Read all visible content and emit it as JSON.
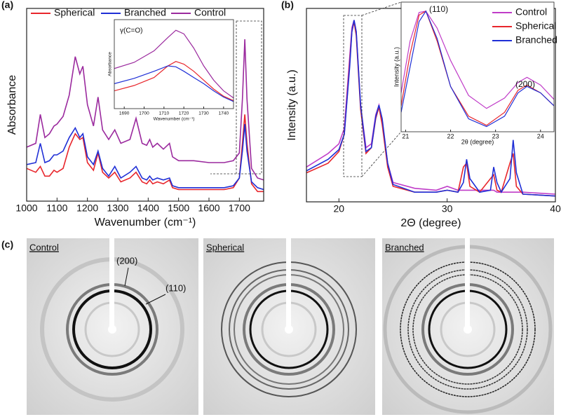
{
  "chart_data": [
    {
      "type": "line",
      "panel_label": "(a)",
      "x_label": "Wavenumber (cm⁻¹)",
      "y_label": "Absorbance",
      "x": [
        1000,
        1030,
        1045,
        1060,
        1075,
        1090,
        1100,
        1120,
        1140,
        1160,
        1175,
        1185,
        1200,
        1220,
        1235,
        1250,
        1270,
        1290,
        1310,
        1340,
        1360,
        1380,
        1395,
        1405,
        1415,
        1430,
        1450,
        1470,
        1480,
        1500,
        1550,
        1600,
        1650,
        1680,
        1700,
        1710,
        1718,
        1725,
        1740,
        1760,
        1780
      ],
      "series": [
        {
          "name": "Spherical",
          "color": "#e8262c",
          "values": [
            0.17,
            0.15,
            0.18,
            0.13,
            0.13,
            0.16,
            0.15,
            0.17,
            0.28,
            0.35,
            0.32,
            0.33,
            0.2,
            0.16,
            0.25,
            0.15,
            0.12,
            0.15,
            0.1,
            0.12,
            0.15,
            0.1,
            0.09,
            0.11,
            0.09,
            0.1,
            0.09,
            0.11,
            0.07,
            0.06,
            0.06,
            0.06,
            0.06,
            0.07,
            0.12,
            0.3,
            0.45,
            0.3,
            0.09,
            0.05,
            0.05
          ]
        },
        {
          "name": "Branched",
          "color": "#1f2fd6",
          "values": [
            0.19,
            0.2,
            0.3,
            0.2,
            0.21,
            0.24,
            0.24,
            0.26,
            0.33,
            0.38,
            0.33,
            0.35,
            0.23,
            0.19,
            0.26,
            0.17,
            0.13,
            0.18,
            0.12,
            0.15,
            0.18,
            0.12,
            0.11,
            0.13,
            0.11,
            0.12,
            0.11,
            0.12,
            0.08,
            0.07,
            0.07,
            0.07,
            0.07,
            0.08,
            0.12,
            0.26,
            0.4,
            0.26,
            0.1,
            0.07,
            0.06
          ]
        },
        {
          "name": "Control",
          "color": "#9b2a9e",
          "values": [
            0.28,
            0.3,
            0.45,
            0.33,
            0.35,
            0.39,
            0.4,
            0.44,
            0.55,
            0.75,
            0.66,
            0.7,
            0.5,
            0.39,
            0.54,
            0.37,
            0.32,
            0.37,
            0.3,
            0.32,
            0.43,
            0.3,
            0.29,
            0.32,
            0.28,
            0.3,
            0.27,
            0.3,
            0.23,
            0.21,
            0.21,
            0.2,
            0.2,
            0.21,
            0.25,
            0.53,
            0.84,
            0.53,
            0.17,
            0.12,
            0.11
          ]
        }
      ],
      "xlim": [
        1000,
        1780
      ],
      "xticks": [
        1000,
        1100,
        1200,
        1300,
        1400,
        1500,
        1600,
        1700
      ],
      "ylim": [
        0,
        1
      ],
      "legend": "top-left"
    },
    {
      "type": "line",
      "title": "γ(C=O)",
      "x_label": "Wavenumber (cm⁻¹)",
      "y_label": "Absorbance",
      "x": [
        1685,
        1695,
        1705,
        1712,
        1716,
        1720,
        1725,
        1730,
        1735,
        1740,
        1745
      ],
      "series": [
        {
          "color": "#e8262c",
          "values": [
            0.2,
            0.26,
            0.35,
            0.48,
            0.53,
            0.5,
            0.42,
            0.32,
            0.22,
            0.14,
            0.09
          ]
        },
        {
          "color": "#1f2fd6",
          "values": [
            0.28,
            0.34,
            0.42,
            0.48,
            0.47,
            0.42,
            0.35,
            0.28,
            0.2,
            0.13,
            0.08
          ]
        },
        {
          "color": "#9b2a9e",
          "values": [
            0.45,
            0.52,
            0.65,
            0.8,
            0.88,
            0.84,
            0.68,
            0.48,
            0.32,
            0.2,
            0.12
          ]
        }
      ],
      "xlim": [
        1685,
        1745
      ],
      "xticks": [
        1690,
        1700,
        1710,
        1720,
        1730,
        1740
      ],
      "ylim": [
        0,
        1
      ]
    },
    {
      "type": "line",
      "panel_label": "(b)",
      "x_label": "2Θ (degree)",
      "y_label": "Intensity (a.u.)",
      "x": [
        17,
        19,
        20,
        20.5,
        21,
        21.2,
        21.4,
        21.6,
        22,
        22.5,
        23,
        23.4,
        23.7,
        24,
        24.5,
        25,
        27,
        29,
        30,
        31,
        31.5,
        31.8,
        32.1,
        33,
        34,
        34.3,
        34.6,
        35,
        35.8,
        36.1,
        36.4,
        37,
        40
      ],
      "series": [
        {
          "name": "Control",
          "color": "#c03cc8",
          "values": [
            0.18,
            0.25,
            0.3,
            0.38,
            0.75,
            0.9,
            0.94,
            0.88,
            0.5,
            0.28,
            0.3,
            0.45,
            0.5,
            0.42,
            0.2,
            0.1,
            0.07,
            0.06,
            0.08,
            0.06,
            0.06,
            0.06,
            0.06,
            0.06,
            0.06,
            0.06,
            0.05,
            0.05,
            0.05,
            0.05,
            0.05,
            0.05,
            0.04
          ]
        },
        {
          "name": "Spherical",
          "color": "#e8262c",
          "values": [
            0.15,
            0.2,
            0.26,
            0.35,
            0.72,
            0.88,
            0.93,
            0.86,
            0.48,
            0.25,
            0.28,
            0.43,
            0.49,
            0.4,
            0.18,
            0.08,
            0.05,
            0.05,
            0.06,
            0.05,
            0.18,
            0.2,
            0.08,
            0.05,
            0.12,
            0.14,
            0.06,
            0.05,
            0.2,
            0.25,
            0.08,
            0.04,
            0.03
          ]
        },
        {
          "name": "Branched",
          "color": "#1f2fd6",
          "values": [
            0.16,
            0.22,
            0.27,
            0.35,
            0.7,
            0.88,
            0.94,
            0.88,
            0.5,
            0.26,
            0.28,
            0.44,
            0.5,
            0.43,
            0.2,
            0.09,
            0.05,
            0.05,
            0.06,
            0.05,
            0.1,
            0.22,
            0.12,
            0.05,
            0.06,
            0.18,
            0.1,
            0.05,
            0.12,
            0.32,
            0.15,
            0.04,
            0.03
          ]
        }
      ],
      "xlim": [
        17,
        40
      ],
      "xticks": [
        20,
        30,
        40
      ],
      "ylim": [
        0,
        1
      ],
      "legend": "top-right"
    },
    {
      "type": "line",
      "x_label": "2θ (degree)",
      "y_label": "Intensity (a.u.)",
      "annotations": [
        "(110)",
        "(200)"
      ],
      "x": [
        20.9,
        21.1,
        21.3,
        21.45,
        21.7,
        22.0,
        22.4,
        22.8,
        23.2,
        23.5,
        23.7,
        24.0,
        24.3
      ],
      "series": [
        {
          "color": "#c03cc8",
          "values": [
            0.3,
            0.7,
            0.92,
            0.93,
            0.8,
            0.55,
            0.28,
            0.18,
            0.26,
            0.38,
            0.42,
            0.36,
            0.25
          ]
        },
        {
          "color": "#e8262c",
          "values": [
            0.2,
            0.6,
            0.9,
            0.93,
            0.7,
            0.35,
            0.12,
            0.05,
            0.15,
            0.32,
            0.36,
            0.3,
            0.2
          ]
        },
        {
          "color": "#1f2fd6",
          "values": [
            0.15,
            0.5,
            0.85,
            0.93,
            0.72,
            0.35,
            0.1,
            0.04,
            0.12,
            0.3,
            0.35,
            0.3,
            0.2
          ]
        }
      ],
      "xlim": [
        20.9,
        24.3
      ],
      "xticks": [
        21,
        22,
        23,
        24
      ],
      "ylim": [
        0,
        1
      ]
    }
  ],
  "image_panel": {
    "label": "(c)",
    "images": [
      {
        "label": "Control",
        "annotations": [
          "(200)",
          "(110)"
        ]
      },
      {
        "label": "Spherical"
      },
      {
        "label": "Branched"
      }
    ]
  }
}
